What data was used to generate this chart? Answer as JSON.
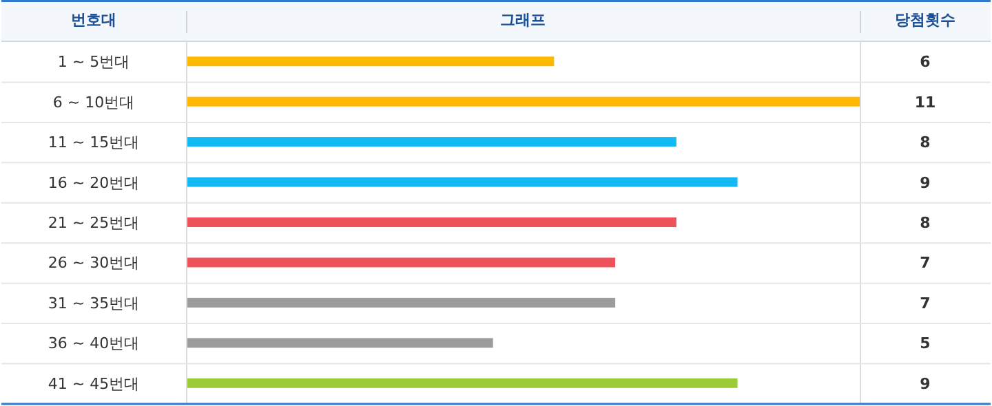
{
  "chart_data": {
    "type": "bar",
    "orientation": "horizontal",
    "ylabel": "번호대",
    "title": "그래프",
    "y2label": "당첨횟수",
    "categories": [
      "1 ~ 5번대",
      "6 ~ 10번대",
      "11 ~ 15번대",
      "16 ~ 20번대",
      "21 ~ 25번대",
      "26 ~ 30번대",
      "31 ~ 35번대",
      "36 ~ 40번대",
      "41 ~ 45번대"
    ],
    "values": [
      6,
      11,
      8,
      9,
      8,
      7,
      7,
      5,
      9
    ],
    "colors": [
      "#ffb900",
      "#ffb900",
      "#12b9f5",
      "#12b9f5",
      "#ee535b",
      "#ee535b",
      "#9c9c9c",
      "#9c9c9c",
      "#9ccc35"
    ],
    "xlim": [
      0,
      11
    ],
    "data_labels": true
  }
}
